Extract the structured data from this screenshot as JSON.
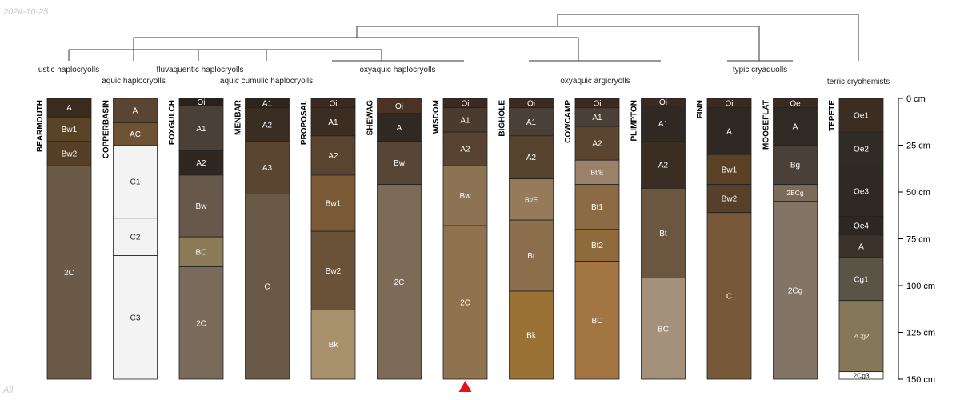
{
  "header": {
    "date": "2024-10-25"
  },
  "footer": {
    "label": "All"
  },
  "colors": {
    "line": "#333333",
    "border": "#222222",
    "marker": "#e8121b"
  },
  "chart_data": {
    "type": "soil-profile-sketch",
    "depth_unit": "cm",
    "depth_range": [
      0,
      150
    ],
    "depth_ticks": [
      0,
      25,
      50,
      75,
      100,
      125,
      150
    ],
    "depth_tick_labels": [
      "0 cm",
      "25 cm",
      "50 cm",
      "75 cm",
      "100 cm",
      "125 cm",
      "150 cm"
    ],
    "marker_profile": "WISDOM",
    "profiles": [
      {
        "name": "BEARMOUTH",
        "horizons": [
          {
            "name": "A",
            "top": 0,
            "bottom": 10,
            "color": "#3a2b1f"
          },
          {
            "name": "Bw1",
            "top": 10,
            "bottom": 23,
            "color": "#5a4427"
          },
          {
            "name": "Bw2",
            "top": 23,
            "bottom": 36,
            "color": "#553f27"
          },
          {
            "name": "2C",
            "top": 36,
            "bottom": 150,
            "color": "#6b5a47"
          }
        ]
      },
      {
        "name": "COPPERBASIN",
        "horizons": [
          {
            "name": "A",
            "top": 0,
            "bottom": 13,
            "color": "#5a4531"
          },
          {
            "name": "AC",
            "top": 13,
            "bottom": 25,
            "color": "#6d5234"
          },
          {
            "name": "C1",
            "top": 25,
            "bottom": 64,
            "color": "#f3f3f3"
          },
          {
            "name": "C2",
            "top": 64,
            "bottom": 84,
            "color": "#f3f3f3"
          },
          {
            "name": "C3",
            "top": 84,
            "bottom": 150,
            "color": "#f3f3f3"
          }
        ]
      },
      {
        "name": "FOXGULCH",
        "horizons": [
          {
            "name": "Oi",
            "top": 0,
            "bottom": 4,
            "color": "#2b211b"
          },
          {
            "name": "A1",
            "top": 4,
            "bottom": 28,
            "color": "#4a4038"
          },
          {
            "name": "A2",
            "top": 28,
            "bottom": 41,
            "color": "#2f2720"
          },
          {
            "name": "Bw",
            "top": 41,
            "bottom": 74,
            "color": "#66584a"
          },
          {
            "name": "BC",
            "top": 74,
            "bottom": 90,
            "color": "#8a7a58"
          },
          {
            "name": "2C",
            "top": 90,
            "bottom": 150,
            "color": "#7a6a5a"
          }
        ]
      },
      {
        "name": "MENBAR",
        "horizons": [
          {
            "name": "A1",
            "top": 0,
            "bottom": 5,
            "color": "#2e241e"
          },
          {
            "name": "A2",
            "top": 5,
            "bottom": 23,
            "color": "#3a2d22"
          },
          {
            "name": "A3",
            "top": 23,
            "bottom": 51,
            "color": "#5a4630"
          },
          {
            "name": "C",
            "top": 51,
            "bottom": 150,
            "color": "#6a5946"
          }
        ]
      },
      {
        "name": "PROPOSAL",
        "horizons": [
          {
            "name": "Oi",
            "top": 0,
            "bottom": 5,
            "color": "#3b2a22"
          },
          {
            "name": "A1",
            "top": 5,
            "bottom": 20,
            "color": "#3b2d22"
          },
          {
            "name": "A2",
            "top": 20,
            "bottom": 41,
            "color": "#5a4430"
          },
          {
            "name": "Bw1",
            "top": 41,
            "bottom": 71,
            "color": "#7a5a36"
          },
          {
            "name": "Bw2",
            "top": 71,
            "bottom": 113,
            "color": "#6a5238"
          },
          {
            "name": "Bk",
            "top": 113,
            "bottom": 150,
            "color": "#a8926e"
          }
        ]
      },
      {
        "name": "SHEWAG",
        "horizons": [
          {
            "name": "Oi",
            "top": 0,
            "bottom": 8,
            "color": "#4a3326"
          },
          {
            "name": "A",
            "top": 8,
            "bottom": 23,
            "color": "#2f2823"
          },
          {
            "name": "Bw",
            "top": 23,
            "bottom": 46,
            "color": "#574636"
          },
          {
            "name": "2C",
            "top": 46,
            "bottom": 150,
            "color": "#7d6b58"
          }
        ]
      },
      {
        "name": "WISDOM",
        "horizons": [
          {
            "name": "Oi",
            "top": 0,
            "bottom": 5,
            "color": "#3b2a22"
          },
          {
            "name": "A1",
            "top": 5,
            "bottom": 18,
            "color": "#4a3b2e"
          },
          {
            "name": "A2",
            "top": 18,
            "bottom": 36,
            "color": "#57432f"
          },
          {
            "name": "Bw",
            "top": 36,
            "bottom": 68,
            "color": "#8b7354"
          },
          {
            "name": "2C",
            "top": 68,
            "bottom": 150,
            "color": "#8f7350"
          }
        ]
      },
      {
        "name": "BIGHOLE",
        "horizons": [
          {
            "name": "Oi",
            "top": 0,
            "bottom": 5,
            "color": "#3b2a22"
          },
          {
            "name": "A1",
            "top": 5,
            "bottom": 20,
            "color": "#4a4038"
          },
          {
            "name": "A2",
            "top": 20,
            "bottom": 43,
            "color": "#57442f"
          },
          {
            "name": "Bt/E",
            "top": 43,
            "bottom": 65,
            "color": "#957b5a"
          },
          {
            "name": "Bt",
            "top": 65,
            "bottom": 103,
            "color": "#8b6f4d"
          },
          {
            "name": "Bk",
            "top": 103,
            "bottom": 150,
            "color": "#9a7236"
          }
        ]
      },
      {
        "name": "COWCAMP",
        "horizons": [
          {
            "name": "Oi",
            "top": 0,
            "bottom": 5,
            "color": "#3b2a22"
          },
          {
            "name": "A1",
            "top": 5,
            "bottom": 15,
            "color": "#4a4038"
          },
          {
            "name": "A2",
            "top": 15,
            "bottom": 33,
            "color": "#5b4530"
          },
          {
            "name": "Bt/E",
            "top": 33,
            "bottom": 46,
            "color": "#9b806a"
          },
          {
            "name": "Bt1",
            "top": 46,
            "bottom": 70,
            "color": "#8b6a45"
          },
          {
            "name": "Bt2",
            "top": 70,
            "bottom": 87,
            "color": "#8f6a3a"
          },
          {
            "name": "BC",
            "top": 87,
            "bottom": 150,
            "color": "#a27543"
          }
        ]
      },
      {
        "name": "PLIMPTON",
        "horizons": [
          {
            "name": "Oi",
            "top": 0,
            "bottom": 4,
            "color": "#3b2a22"
          },
          {
            "name": "A1",
            "top": 4,
            "bottom": 23,
            "color": "#2f2823"
          },
          {
            "name": "A2",
            "top": 23,
            "bottom": 48,
            "color": "#3a2d22"
          },
          {
            "name": "Bt",
            "top": 48,
            "bottom": 96,
            "color": "#6b5640"
          },
          {
            "name": "BC",
            "top": 96,
            "bottom": 150,
            "color": "#a3917c"
          }
        ]
      },
      {
        "name": "FINN",
        "horizons": [
          {
            "name": "Oi",
            "top": 0,
            "bottom": 5,
            "color": "#3b2a22"
          },
          {
            "name": "A",
            "top": 5,
            "bottom": 30,
            "color": "#2f2823"
          },
          {
            "name": "Bw1",
            "top": 30,
            "bottom": 46,
            "color": "#5a4125"
          },
          {
            "name": "Bw2",
            "top": 46,
            "bottom": 61,
            "color": "#57402a"
          },
          {
            "name": "C",
            "top": 61,
            "bottom": 150,
            "color": "#77593a"
          }
        ]
      },
      {
        "name": "MOOSEFLAT",
        "horizons": [
          {
            "name": "Oe",
            "top": 0,
            "bottom": 5,
            "color": "#3b2a22"
          },
          {
            "name": "A",
            "top": 5,
            "bottom": 25,
            "color": "#302a25"
          },
          {
            "name": "Bg",
            "top": 25,
            "bottom": 46,
            "color": "#4a4038"
          },
          {
            "name": "2BCg",
            "top": 46,
            "bottom": 55,
            "color": "#7a6b5a"
          },
          {
            "name": "2Cg",
            "top": 55,
            "bottom": 150,
            "color": "#827566"
          }
        ]
      },
      {
        "name": "TEPETE",
        "horizons": [
          {
            "name": "Oe1",
            "top": 0,
            "bottom": 18,
            "color": "#3b2d22"
          },
          {
            "name": "Oe2",
            "top": 18,
            "bottom": 36,
            "color": "#312b25"
          },
          {
            "name": "Oe3",
            "top": 36,
            "bottom": 63,
            "color": "#2f2823"
          },
          {
            "name": "Oe4",
            "top": 63,
            "bottom": 73,
            "color": "#2d2722"
          },
          {
            "name": "A",
            "top": 73,
            "bottom": 85,
            "color": "#3a3229"
          },
          {
            "name": "Cg1",
            "top": 85,
            "bottom": 108,
            "color": "#5a5446"
          },
          {
            "name": "2Cg2",
            "top": 108,
            "bottom": 146,
            "color": "#857858"
          },
          {
            "name": "2Cg3",
            "top": 146,
            "bottom": 150,
            "color": "#ffffff"
          }
        ]
      }
    ],
    "taxa_labels": [
      "ustic haplocryolls",
      "aquic haplocryolls",
      "fluvaquentic haplocryolls",
      "aquic cumulic haplocryolls",
      "oxyaquic haplocryolls",
      "oxyaquic argicryolls",
      "typic cryaquolls",
      "terric cryohemists"
    ]
  }
}
